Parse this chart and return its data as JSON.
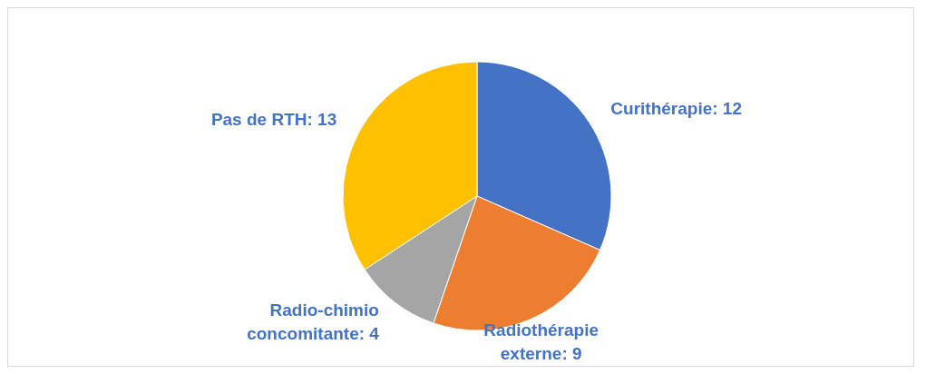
{
  "chart_data": {
    "type": "pie",
    "categories": [
      "Curithérapie: 12",
      "Radiothérapie externe: 9",
      "Radio-chimio concomitante: 4",
      "Pas de RTH: 13"
    ],
    "values": [
      12,
      9,
      4,
      13
    ],
    "colors": [
      "#4472c4",
      "#ed7d31",
      "#a5a5a5",
      "#ffc000"
    ],
    "legend": false
  }
}
